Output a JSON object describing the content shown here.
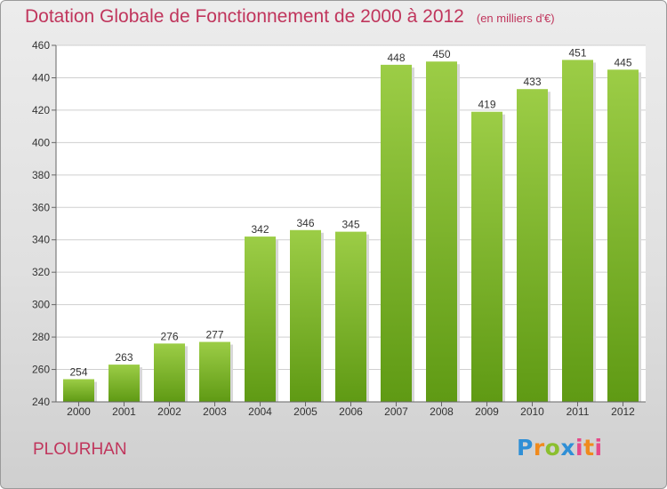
{
  "title": "Dotation Globale de Fonctionnement de 2000 à 2012",
  "unit_label": "(en milliers d'€)",
  "commune": "PLOURHAN",
  "logo": {
    "text": "Proxiti",
    "letters": [
      "P",
      "r",
      "o",
      "x",
      "i",
      "t",
      "i"
    ]
  },
  "colors": {
    "title": "#c0355c",
    "bar_light": "#9ccd46",
    "bar_dark": "#5f9a14",
    "grid": "#cfcfcf"
  },
  "chart_data": {
    "type": "bar",
    "categories": [
      "2000",
      "2001",
      "2002",
      "2003",
      "2004",
      "2005",
      "2006",
      "2007",
      "2008",
      "2009",
      "2010",
      "2011",
      "2012"
    ],
    "values": [
      254,
      263,
      276,
      277,
      342,
      346,
      345,
      448,
      450,
      419,
      433,
      451,
      445
    ],
    "value_labels": [
      "254",
      "263",
      "276",
      "277",
      "342",
      "346",
      "345",
      "448",
      "450",
      "419",
      "433",
      "451",
      "445"
    ],
    "ylim": [
      240,
      460
    ],
    "yticks": [
      240,
      260,
      280,
      300,
      320,
      340,
      360,
      380,
      400,
      420,
      440,
      460
    ],
    "grid": true,
    "xlabel": "",
    "ylabel": ""
  }
}
